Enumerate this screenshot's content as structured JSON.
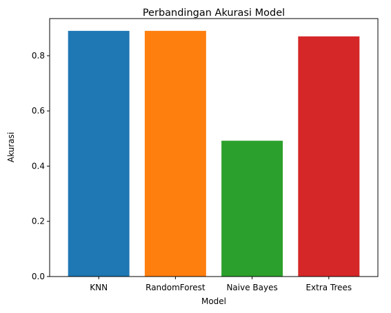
{
  "chart_data": {
    "type": "bar",
    "title": "Perbandingan Akurasi Model",
    "xlabel": "Model",
    "ylabel": "Akurasi",
    "categories": [
      "KNN",
      "RandomForest",
      "Naive Bayes",
      "Extra Trees"
    ],
    "values": [
      0.89,
      0.89,
      0.492,
      0.87
    ],
    "colors": [
      "#1f77b4",
      "#ff7f0e",
      "#2ca02c",
      "#d62728"
    ],
    "ylim": [
      0,
      0.9345
    ],
    "yticks": [
      0.0,
      0.2,
      0.4,
      0.6,
      0.8
    ],
    "ytick_labels": [
      "0.0",
      "0.2",
      "0.4",
      "0.6",
      "0.8"
    ],
    "grid": false,
    "legend": "none"
  }
}
